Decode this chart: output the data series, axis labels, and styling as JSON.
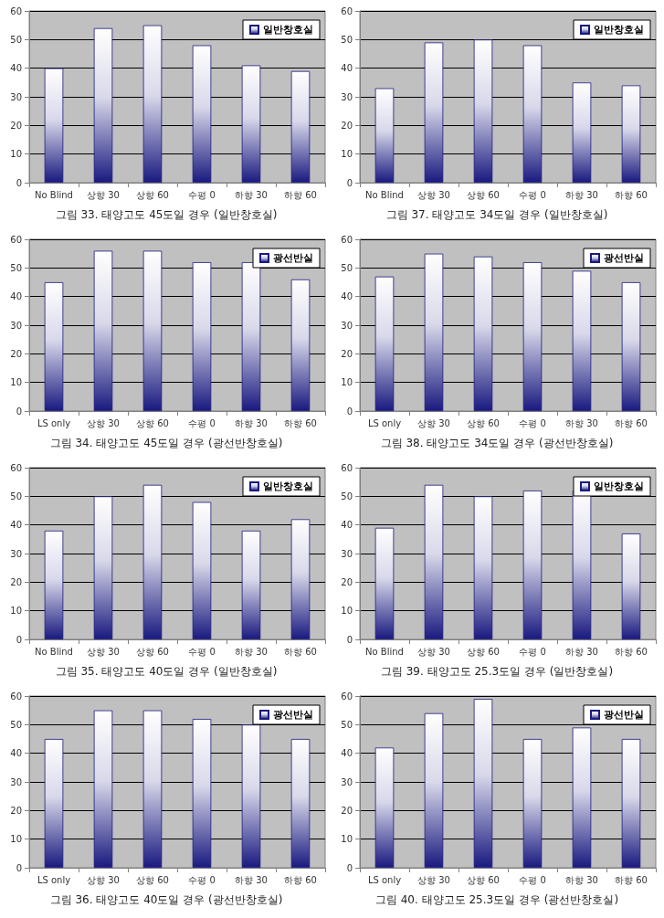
{
  "chart_data": [
    {
      "type": "bar",
      "title": "그림 33. 태양고도 45도일 경우 (일반창호실)",
      "categories": [
        "No Blind",
        "상향 30",
        "상향 60",
        "수평 0",
        "하향 30",
        "하향 60"
      ],
      "series": [
        {
          "name": "일반창호실",
          "color": "#1a1a80",
          "values": [
            40,
            54,
            55,
            48,
            41,
            39
          ]
        }
      ],
      "ylim": [
        0,
        60
      ],
      "yticks": [
        0,
        10,
        20,
        30,
        40,
        50,
        60
      ],
      "grid": "y",
      "legend": "top right"
    },
    {
      "type": "bar",
      "title": "그림 37. 태양고도 34도일 경우 (일반창호실)",
      "categories": [
        "No Blind",
        "상향 30",
        "상향 60",
        "수평 0",
        "하향 30",
        "하향 60"
      ],
      "series": [
        {
          "name": "일반창호실",
          "color": "#1a1a80",
          "values": [
            33,
            49,
            50,
            48,
            35,
            34
          ]
        }
      ],
      "ylim": [
        0,
        60
      ],
      "yticks": [
        0,
        10,
        20,
        30,
        40,
        50,
        60
      ],
      "grid": "y",
      "legend": "top right"
    },
    {
      "type": "bar",
      "title": "그림 34. 태양고도 45도일 경우 (광선반창호실)",
      "categories": [
        "LS only",
        "상향 30",
        "상향 60",
        "수평 0",
        "하향 30",
        "하향 60"
      ],
      "series": [
        {
          "name": "광선반실",
          "color": "#1a1a80",
          "values": [
            45,
            56,
            56,
            52,
            52,
            46
          ]
        }
      ],
      "ylim": [
        0,
        60
      ],
      "yticks": [
        0,
        10,
        20,
        30,
        40,
        50,
        60
      ],
      "grid": "y",
      "legend": "top right"
    },
    {
      "type": "bar",
      "title": "그림 38. 태양고도 34도일 경우 (광선반창호실)",
      "categories": [
        "LS only",
        "상향 30",
        "상향 60",
        "수평 0",
        "하향 30",
        "하향 60"
      ],
      "series": [
        {
          "name": "광선반실",
          "color": "#1a1a80",
          "values": [
            47,
            55,
            54,
            52,
            49,
            45
          ]
        }
      ],
      "ylim": [
        0,
        60
      ],
      "yticks": [
        0,
        10,
        20,
        30,
        40,
        50,
        60
      ],
      "grid": "y",
      "legend": "top right"
    },
    {
      "type": "bar",
      "title": "그림 35. 태양고도 40도일 경우 (일반창호실)",
      "categories": [
        "No Blind",
        "상향 30",
        "상향 60",
        "수평 0",
        "하향 30",
        "하향 60"
      ],
      "series": [
        {
          "name": "일반창호실",
          "color": "#1a1a80",
          "values": [
            38,
            50,
            54,
            48,
            38,
            42
          ]
        }
      ],
      "ylim": [
        0,
        60
      ],
      "yticks": [
        0,
        10,
        20,
        30,
        40,
        50,
        60
      ],
      "grid": "y",
      "legend": "top right"
    },
    {
      "type": "bar",
      "title": "그림 39. 태양고도 25.3도일 경우 (일반창호실)",
      "categories": [
        "No Blind",
        "상향 30",
        "상향 60",
        "수평 0",
        "하향 30",
        "하향 60"
      ],
      "series": [
        {
          "name": "일반창호실",
          "color": "#1a1a80",
          "values": [
            39,
            54,
            50,
            52,
            52,
            37
          ]
        }
      ],
      "ylim": [
        0,
        60
      ],
      "yticks": [
        0,
        10,
        20,
        30,
        40,
        50,
        60
      ],
      "grid": "y",
      "legend": "top right"
    },
    {
      "type": "bar",
      "title": "그림 36. 태양고도 40도일 경우 (광선반창호실)",
      "categories": [
        "LS only",
        "상향 30",
        "상향 60",
        "수평 0",
        "하향 30",
        "하향 60"
      ],
      "series": [
        {
          "name": "광선반실",
          "color": "#1a1a80",
          "values": [
            45,
            55,
            55,
            52,
            50,
            45
          ]
        }
      ],
      "ylim": [
        0,
        60
      ],
      "yticks": [
        0,
        10,
        20,
        30,
        40,
        50,
        60
      ],
      "grid": "y",
      "legend": "top right"
    },
    {
      "type": "bar",
      "title": "그림 40. 태양고도 25.3도일 경우 (광선반창호실)",
      "categories": [
        "LS only",
        "상향 30",
        "상향 60",
        "수평 0",
        "하향 30",
        "하향 60"
      ],
      "series": [
        {
          "name": "광선반실",
          "color": "#1a1a80",
          "values": [
            42,
            54,
            59,
            45,
            49,
            45
          ]
        }
      ],
      "ylim": [
        0,
        60
      ],
      "yticks": [
        0,
        10,
        20,
        30,
        40,
        50,
        60
      ],
      "grid": "y",
      "legend": "top right"
    }
  ]
}
